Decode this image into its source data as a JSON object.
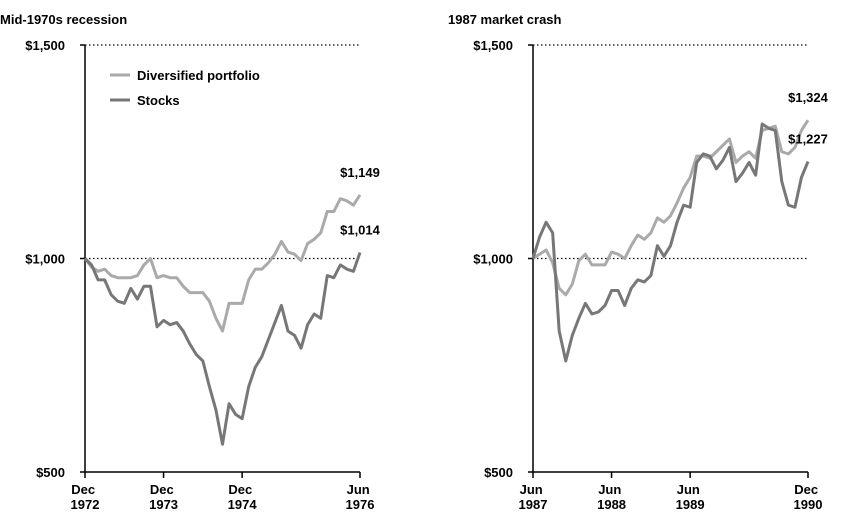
{
  "chart_data": [
    {
      "type": "line",
      "title": "Mid-1970s recession",
      "x": [
        0,
        1,
        2,
        3,
        4,
        5,
        6,
        7,
        8,
        9,
        10,
        11,
        12,
        13,
        14,
        15,
        16,
        17,
        18,
        19,
        20,
        21,
        22,
        23,
        24,
        25,
        26,
        27,
        28,
        29,
        30,
        31,
        32,
        33,
        34,
        35,
        36,
        37,
        38,
        39,
        40,
        41,
        42
      ],
      "xlim": [
        0,
        42
      ],
      "xticks": [
        {
          "value": 0,
          "label": "Dec 1972"
        },
        {
          "value": 12,
          "label": "Dec 1973"
        },
        {
          "value": 24,
          "label": "Dec 1974"
        },
        {
          "value": 42,
          "label": "Jun 1976"
        }
      ],
      "ylim": [
        500,
        1500
      ],
      "yticks": [
        {
          "value": 500,
          "label": "$500"
        },
        {
          "value": 1000,
          "label": "$1,000"
        },
        {
          "value": 1500,
          "label": "$1,500"
        }
      ],
      "grid": true,
      "legend": "upper left",
      "series": [
        {
          "name": "Diversified portfolio",
          "color": "#aaaaaa",
          "end_label": "$1,149",
          "values": [
            1000,
            980,
            970,
            975,
            960,
            955,
            955,
            955,
            960,
            985,
            1000,
            955,
            960,
            955,
            955,
            935,
            920,
            920,
            920,
            900,
            860,
            830,
            895,
            895,
            895,
            950,
            975,
            975,
            990,
            1010,
            1040,
            1015,
            1010,
            995,
            1035,
            1045,
            1060,
            1110,
            1110,
            1140,
            1135,
            1125,
            1149
          ]
        },
        {
          "name": "Stocks",
          "color": "#777777",
          "end_label": "$1,014",
          "values": [
            1000,
            985,
            950,
            950,
            915,
            900,
            895,
            930,
            905,
            935,
            935,
            840,
            855,
            845,
            850,
            830,
            800,
            775,
            760,
            700,
            645,
            565,
            660,
            635,
            625,
            700,
            745,
            770,
            810,
            850,
            890,
            830,
            820,
            790,
            845,
            870,
            860,
            960,
            955,
            985,
            975,
            970,
            1014
          ]
        }
      ]
    },
    {
      "type": "line",
      "title": "1987 market crash",
      "x": [
        0,
        1,
        2,
        3,
        4,
        5,
        6,
        7,
        8,
        9,
        10,
        11,
        12,
        13,
        14,
        15,
        16,
        17,
        18,
        19,
        20,
        21,
        22,
        23,
        24,
        25,
        26,
        27,
        28,
        29,
        30,
        31,
        32,
        33,
        34,
        35,
        36,
        37,
        38,
        39,
        40,
        41,
        42
      ],
      "xlim": [
        0,
        42
      ],
      "xticks": [
        {
          "value": 0,
          "label": "Jun 1987"
        },
        {
          "value": 12,
          "label": "Jun 1988"
        },
        {
          "value": 24,
          "label": "Jun 1989"
        },
        {
          "value": 42,
          "label": "Dec 1990"
        }
      ],
      "ylim": [
        500,
        1500
      ],
      "yticks": [
        {
          "value": 500,
          "label": "$500"
        },
        {
          "value": 1000,
          "label": "$1,000"
        },
        {
          "value": 1500,
          "label": "$1,500"
        }
      ],
      "grid": true,
      "series": [
        {
          "color": "#aaaaaa",
          "end_label": "$1,324",
          "values": [
            1000,
            1010,
            1020,
            990,
            930,
            915,
            940,
            995,
            1010,
            985,
            985,
            985,
            1015,
            1010,
            1000,
            1030,
            1055,
            1045,
            1060,
            1095,
            1085,
            1100,
            1130,
            1165,
            1190,
            1240,
            1240,
            1235,
            1250,
            1265,
            1280,
            1225,
            1240,
            1250,
            1235,
            1300,
            1305,
            1310,
            1250,
            1245,
            1260,
            1300,
            1324
          ]
        },
        {
          "color": "#777777",
          "end_label": "$1,227",
          "values": [
            1000,
            1050,
            1085,
            1060,
            830,
            760,
            820,
            860,
            895,
            870,
            875,
            890,
            925,
            925,
            890,
            930,
            950,
            945,
            960,
            1030,
            1005,
            1030,
            1085,
            1125,
            1120,
            1225,
            1245,
            1240,
            1210,
            1230,
            1260,
            1180,
            1200,
            1225,
            1195,
            1315,
            1305,
            1300,
            1180,
            1125,
            1120,
            1190,
            1227
          ]
        }
      ]
    }
  ]
}
